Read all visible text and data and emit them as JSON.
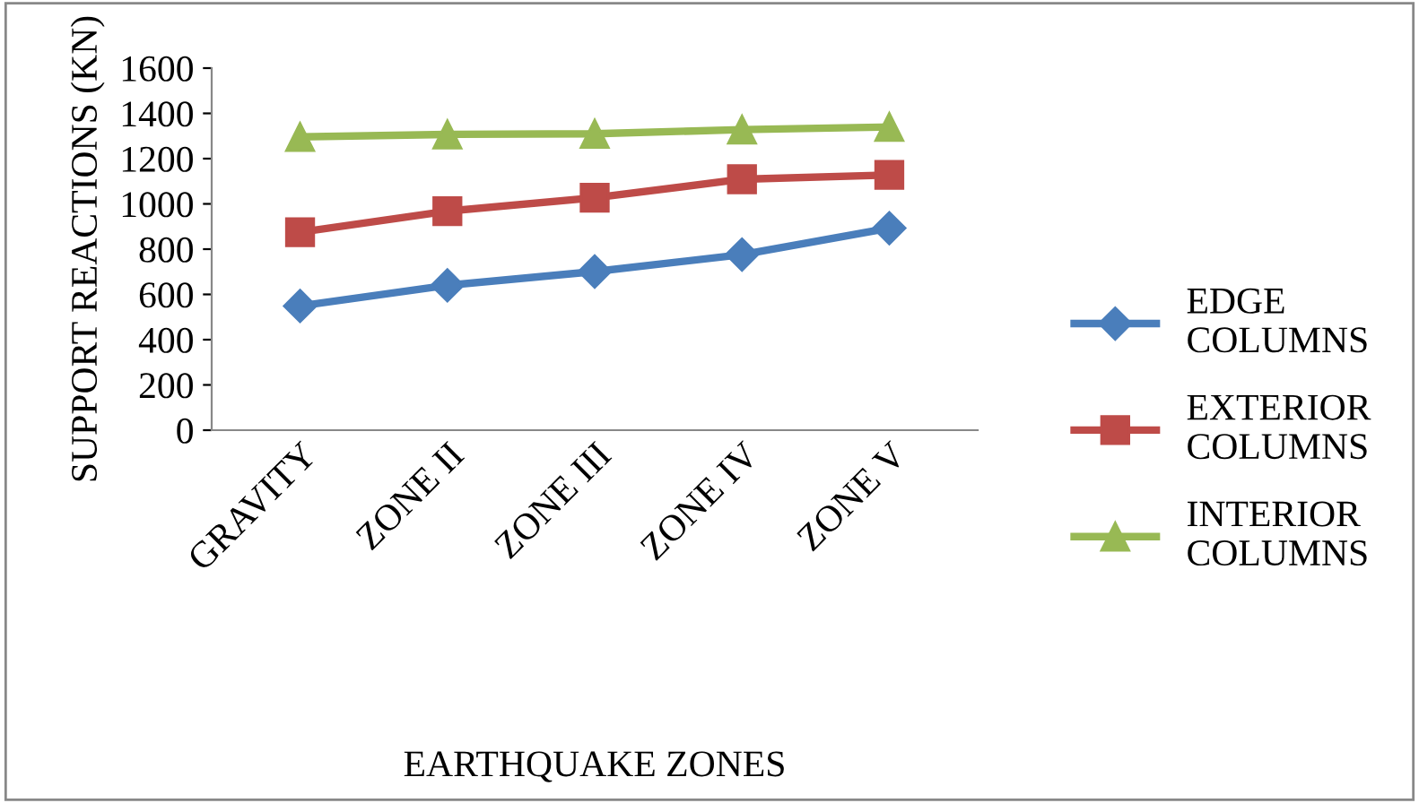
{
  "chart_data": {
    "type": "line",
    "xlabel": "EARTHQUAKE ZONES",
    "ylabel": "SUPPORT REACTIONS (KN)",
    "categories": [
      "GRAVITY",
      "ZONE II",
      "ZONE III",
      "ZONE IV",
      "ZONE V"
    ],
    "series": [
      {
        "name": "EDGE COLUMNS",
        "color": "#4a7ebb",
        "marker": "diamond",
        "values": [
          549,
          640,
          701,
          776,
          893
        ]
      },
      {
        "name": "EXTERIOR COLUMNS",
        "color": "#be4b48",
        "marker": "square",
        "values": [
          875,
          968,
          1027,
          1109,
          1128
        ]
      },
      {
        "name": "INTERIOR COLUMNS",
        "color": "#98b954",
        "marker": "triangle",
        "values": [
          1296,
          1307,
          1310,
          1328,
          1340
        ]
      }
    ],
    "ylim": [
      0,
      1600
    ],
    "yticks": [
      0,
      200,
      400,
      600,
      800,
      1000,
      1200,
      1400,
      1600
    ],
    "grid": false,
    "legend": "right",
    "line_style": "solid"
  }
}
